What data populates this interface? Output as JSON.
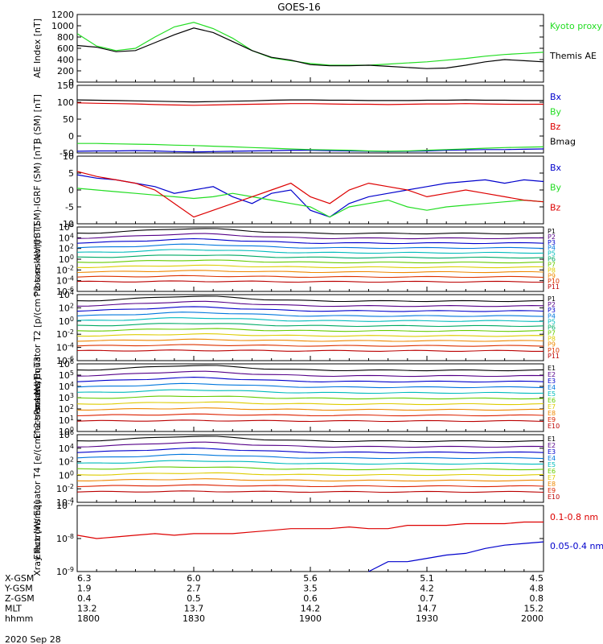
{
  "title": "GOES-16",
  "date_label": "2020 Sep 28",
  "colors": {
    "black": "#000000",
    "green": "#22dd22",
    "blue": "#0000cc",
    "red": "#dd0000"
  },
  "chart_data": [
    {
      "type": "line",
      "ylabel": "AE Index [nT]",
      "ylim": [
        0,
        1200
      ],
      "yticks": [
        "0",
        "200",
        "400",
        "600",
        "800",
        "1000",
        "1200"
      ],
      "x": [
        "1800",
        "1805",
        "1810",
        "1815",
        "1820",
        "1825",
        "1830",
        "1835",
        "1840",
        "1845",
        "1850",
        "1855",
        "1900",
        "1905",
        "1910",
        "1915",
        "1920",
        "1925",
        "1930",
        "1935",
        "1940",
        "1945",
        "1950",
        "1955",
        "2000"
      ],
      "series": [
        {
          "name": "Kyoto proxy AE",
          "color": "#22dd22",
          "values": [
            860,
            640,
            560,
            600,
            800,
            980,
            1060,
            950,
            780,
            560,
            430,
            380,
            330,
            300,
            300,
            300,
            320,
            340,
            360,
            390,
            420,
            460,
            490,
            510,
            530
          ]
        },
        {
          "name": "Themis AE",
          "color": "#000000",
          "values": [
            650,
            620,
            540,
            560,
            700,
            840,
            960,
            880,
            720,
            560,
            440,
            390,
            310,
            290,
            290,
            300,
            280,
            260,
            240,
            250,
            300,
            360,
            400,
            380,
            360
          ]
        }
      ]
    },
    {
      "type": "line",
      "ylabel": "B (SM) [nT]",
      "ylim": [
        -50,
        150
      ],
      "yticks": [
        "-50",
        "0",
        "50",
        "100",
        "150"
      ],
      "series": [
        {
          "name": "Bx",
          "color": "#0000cc",
          "values": [
            -45,
            -44,
            -44,
            -43,
            -44,
            -46,
            -47,
            -46,
            -45,
            -44,
            -43,
            -42,
            -42,
            -43,
            -44,
            -45,
            -46,
            -45,
            -44,
            -42,
            -41,
            -40,
            -40,
            -39,
            -38
          ]
        },
        {
          "name": "By",
          "color": "#22dd22",
          "values": [
            -22,
            -22,
            -23,
            -24,
            -25,
            -27,
            -28,
            -30,
            -32,
            -34,
            -36,
            -38,
            -40,
            -41,
            -42,
            -44,
            -45,
            -44,
            -42,
            -40,
            -38,
            -36,
            -34,
            -33,
            -32
          ]
        },
        {
          "name": "Bz",
          "color": "#dd0000",
          "values": [
            98,
            97,
            96,
            95,
            93,
            92,
            91,
            92,
            93,
            94,
            95,
            96,
            96,
            95,
            94,
            94,
            93,
            94,
            95,
            95,
            96,
            95,
            94,
            94,
            94
          ]
        },
        {
          "name": "Bmag",
          "color": "#000000",
          "values": [
            107,
            106,
            105,
            104,
            103,
            102,
            101,
            102,
            103,
            104,
            106,
            107,
            107,
            106,
            106,
            105,
            105,
            105,
            106,
            106,
            107,
            106,
            106,
            105,
            105
          ]
        }
      ]
    },
    {
      "type": "line",
      "ylabel": "B (SM)-IGRF (SM) [nT]",
      "ylim": [
        -10,
        10
      ],
      "yticks": [
        "-10",
        "-5",
        "0",
        "5",
        "10"
      ],
      "series": [
        {
          "name": "Bx",
          "color": "#0000cc",
          "values": [
            4.5,
            3.5,
            3,
            2,
            1,
            -1,
            0,
            1,
            -2,
            -4,
            -1,
            0,
            -6,
            -8,
            -4,
            -2,
            -1,
            0,
            1,
            2,
            2.5,
            3,
            2,
            3,
            2.5
          ]
        },
        {
          "name": "By",
          "color": "#22dd22",
          "values": [
            0.5,
            0,
            -0.5,
            -1,
            -1.5,
            -2,
            -2.5,
            -2,
            -1,
            -2,
            -3,
            -4,
            -5,
            -8,
            -5,
            -4,
            -3,
            -5,
            -6,
            -5,
            -4.5,
            -4,
            -3.5,
            -3,
            -3.5
          ]
        },
        {
          "name": "Bz",
          "color": "#dd0000",
          "values": [
            5.5,
            4,
            3,
            2,
            0,
            -4,
            -8,
            -6,
            -4,
            -2,
            0,
            2,
            -2,
            -4,
            0,
            2,
            1,
            0,
            -2,
            -1,
            0,
            -1,
            -2,
            -3,
            -3.5
          ]
        }
      ]
    },
    {
      "type": "line",
      "ylabel": "Protons North T1",
      "ylim": [
        -6,
        6
      ],
      "log": true,
      "yticks": [
        "10^6",
        "10^4",
        "10^2",
        "10^0",
        "10^-2",
        "10^-4",
        "10^-6"
      ],
      "legend": [
        "P1",
        "P2",
        "P3",
        "P4",
        "P5",
        "P6",
        "P7",
        "P8",
        "P9",
        "P10",
        "P11"
      ],
      "legend_colors": [
        "#000000",
        "#550088",
        "#0000cc",
        "#0077dd",
        "#00bbbb",
        "#00aa66",
        "#66cc00",
        "#ddcc00",
        "#ee8800",
        "#dd3300",
        "#bb0000"
      ]
    },
    {
      "type": "line",
      "ylabel": "Protons Equator T2 [p/(cm^2-s-sr-keV)]",
      "ylim": [
        -6,
        4
      ],
      "log": true,
      "yticks": [
        "10^4",
        "10^2",
        "10^0",
        "10^-2",
        "10^-4",
        "10^-6"
      ],
      "legend": [
        "P1",
        "P2",
        "P3",
        "P4",
        "P5",
        "P6",
        "P7",
        "P8",
        "P9",
        "P10",
        "P11"
      ],
      "legend_colors": [
        "#000000",
        "#550088",
        "#0000cc",
        "#0077dd",
        "#00bbbb",
        "#00aa66",
        "#66cc00",
        "#ddcc00",
        "#ee8800",
        "#dd3300",
        "#bb0000"
      ]
    },
    {
      "type": "line",
      "ylabel": "Electrons North T3",
      "ylim": [
        0,
        6
      ],
      "log": true,
      "yticks": [
        "10^6",
        "10^5",
        "10^4",
        "10^3",
        "10^2",
        "10^1",
        "10^0"
      ],
      "legend": [
        "E1",
        "E2",
        "E3",
        "E4",
        "E5",
        "E6",
        "E7",
        "E8",
        "E9",
        "E10"
      ],
      "legend_colors": [
        "#000000",
        "#550088",
        "#0000cc",
        "#0077dd",
        "#00bbbb",
        "#66cc00",
        "#ddcc00",
        "#ee8800",
        "#dd2200",
        "#bb0000"
      ]
    },
    {
      "type": "line",
      "ylabel": "Electrons Equator T4 [e/(cm^2-s-sr-keV)]",
      "ylim": [
        -4,
        6
      ],
      "log": true,
      "yticks": [
        "10^6",
        "10^4",
        "10^2",
        "10^0",
        "10^-2",
        "10^-4"
      ],
      "legend": [
        "E1",
        "E2",
        "E3",
        "E4",
        "E5",
        "E6",
        "E7",
        "E8",
        "E9",
        "E10"
      ],
      "legend_colors": [
        "#000000",
        "#550088",
        "#0000cc",
        "#0077dd",
        "#00bbbb",
        "#66cc00",
        "#ddcc00",
        "#ee8800",
        "#dd2200",
        "#bb0000"
      ]
    },
    {
      "type": "line",
      "ylabel": "Xray flux [W/m2]",
      "ylim": [
        -9,
        -7
      ],
      "log": true,
      "yticks": [
        "10^-7",
        "10^-8",
        "10^-9"
      ],
      "series": [
        {
          "name": "0.1-0.8 nm",
          "color": "#dd0000",
          "values": [
            -7.9,
            -8.0,
            -7.95,
            -7.9,
            -7.85,
            -7.9,
            -7.85,
            -7.85,
            -7.85,
            -7.8,
            -7.75,
            -7.7,
            -7.7,
            -7.7,
            -7.65,
            -7.7,
            -7.7,
            -7.6,
            -7.6,
            -7.6,
            -7.55,
            -7.55,
            -7.55,
            -7.5,
            -7.5
          ]
        },
        {
          "name": "0.05-0.4 nm",
          "color": "#0000cc",
          "values": [
            null,
            null,
            null,
            null,
            null,
            null,
            null,
            null,
            null,
            null,
            null,
            null,
            null,
            null,
            null,
            -9.0,
            -8.7,
            -8.7,
            -8.6,
            -8.5,
            -8.45,
            -8.3,
            -8.2,
            -8.15,
            -8.1
          ]
        }
      ]
    }
  ],
  "ephemeris": {
    "rows": [
      {
        "label": "X-GSM",
        "values": [
          "6.3",
          "6.0",
          "5.6",
          "5.1",
          "4.5"
        ]
      },
      {
        "label": "Y-GSM",
        "values": [
          "1.9",
          "2.7",
          "3.5",
          "4.2",
          "4.8"
        ]
      },
      {
        "label": "Z-GSM",
        "values": [
          "0.4",
          "0.5",
          "0.6",
          "0.7",
          "0.8"
        ]
      },
      {
        "label": "MLT",
        "values": [
          "13.2",
          "13.7",
          "14.2",
          "14.7",
          "15.2"
        ]
      },
      {
        "label": "hhmm",
        "values": [
          "1800",
          "1830",
          "1900",
          "1930",
          "2000"
        ]
      }
    ]
  }
}
